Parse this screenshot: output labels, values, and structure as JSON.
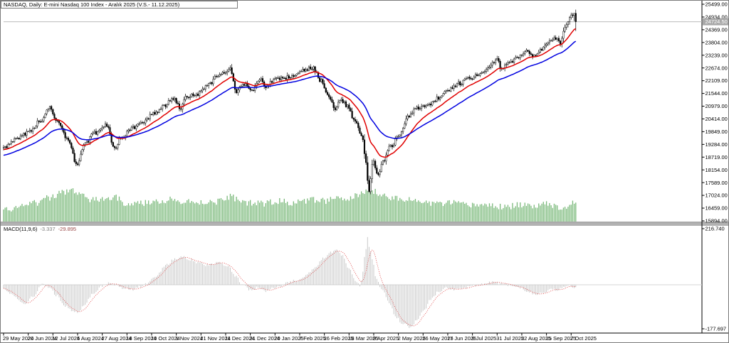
{
  "window": {
    "title": "NASDAQ, Daily:  E-mini Nasdaq 100 Index - Aralık 2025 (V.S.- 11.12.2025)"
  },
  "price_axis": {
    "ticks": [
      "25499.00",
      "24934.00",
      "24369.00",
      "23804.00",
      "23239.00",
      "22674.00",
      "22109.00",
      "21544.00",
      "20979.00",
      "20414.00",
      "19849.00",
      "19284.00",
      "18719.00",
      "18154.00",
      "17589.00",
      "17024.00",
      "16459.00",
      "15894.00"
    ],
    "current_label": "24724.50"
  },
  "time_axis": {
    "labels": [
      "29 May 2024",
      "20 Jun 2024",
      "12 Jul 2024",
      "5 Aug 2024",
      "27 Aug 2024",
      "18 Sep 2024",
      "10 Oct 2024",
      "1 Nov 2024",
      "21 Nov 2024",
      "11 Dec 2024",
      "31 Dec 2024",
      "20 Jan 2025",
      "7 Feb 2025",
      "26 Feb 2025",
      "18 Mar 2025",
      "9 Apr 2025",
      "2 May 2025",
      "26 May 2025",
      "17 Jun 2025",
      "9 Jul 2025",
      "31 Jul 2025",
      "22 Aug 2025",
      "15 Sep 2025",
      "7 Oct 2025"
    ]
  },
  "indicator_panel": {
    "name_label": "MACD(11,9,6)",
    "macd_value": "-3.337",
    "signal_value": "-29.895",
    "axis_max_label": "216.740",
    "axis_min_label": "-177.697"
  },
  "colors": {
    "candle": "#000000",
    "candle_up_fill": "#ffffff",
    "ma_fast": "#e00000",
    "ma_slow": "#0000e0",
    "volume": "#7ab97a",
    "macd_histogram": "#c9c9c9",
    "macd_signal": "#e05050",
    "macd_zero_line": "#d4d4d4",
    "current_price_line": "#bcbcbc",
    "current_price_tag_bg": "#a8a8a8",
    "current_price_tag_text": "#ffffff",
    "separator": "#b2b2b2",
    "axis_line": "#000000"
  },
  "chart_data": {
    "type": "candlestick",
    "symbol": "E-mini Nasdaq 100 Index - Aralık 2025",
    "timeframe": "Daily",
    "bars": 372,
    "price_axis_top": 25499,
    "price_axis_step": 565,
    "price_axis_bottom": 15894,
    "current_price": 24724.5,
    "macd_axis_max": 216.74,
    "macd_axis_min": -177.697,
    "macd_current": -3.337,
    "macd_signal_current": -29.895,
    "macd_settings": "11,9,6",
    "seed": 987431,
    "last_candle": {
      "open": 25100,
      "high": 25260,
      "low": 24310,
      "close": 24724.5
    },
    "overlays": [
      {
        "name": "fast-ma",
        "type": "ema",
        "period": 18,
        "color_key": "ma_fast"
      },
      {
        "name": "slow-ma",
        "type": "ema",
        "period": 42,
        "color_key": "ma_slow"
      }
    ],
    "close_anchors": [
      [
        4,
        19150
      ],
      [
        20,
        19500
      ],
      [
        38,
        19800
      ],
      [
        55,
        20300
      ],
      [
        68,
        20900
      ],
      [
        80,
        20300
      ],
      [
        95,
        19500
      ],
      [
        107,
        18400
      ],
      [
        118,
        19300
      ],
      [
        132,
        19800
      ],
      [
        150,
        20150
      ],
      [
        159,
        19100
      ],
      [
        170,
        19600
      ],
      [
        185,
        20000
      ],
      [
        200,
        20300
      ],
      [
        215,
        20650
      ],
      [
        230,
        21000
      ],
      [
        242,
        21350
      ],
      [
        252,
        20900
      ],
      [
        262,
        21420
      ],
      [
        275,
        21500
      ],
      [
        290,
        21900
      ],
      [
        305,
        22300
      ],
      [
        322,
        22620
      ],
      [
        331,
        21650
      ],
      [
        342,
        21950
      ],
      [
        352,
        21670
      ],
      [
        365,
        22200
      ],
      [
        372,
        21830
      ],
      [
        385,
        22150
      ],
      [
        400,
        22250
      ],
      [
        412,
        22350
      ],
      [
        425,
        22550
      ],
      [
        438,
        22700
      ],
      [
        450,
        22100
      ],
      [
        462,
        21300
      ],
      [
        470,
        20880
      ],
      [
        478,
        21260
      ],
      [
        488,
        20950
      ],
      [
        497,
        20300
      ],
      [
        507,
        19700
      ],
      [
        513,
        18500
      ],
      [
        517,
        17240
      ],
      [
        523,
        18590
      ],
      [
        530,
        17870
      ],
      [
        538,
        18600
      ],
      [
        548,
        19200
      ],
      [
        560,
        19700
      ],
      [
        571,
        20480
      ],
      [
        585,
        20880
      ],
      [
        600,
        21050
      ],
      [
        615,
        21350
      ],
      [
        630,
        21700
      ],
      [
        645,
        22000
      ],
      [
        660,
        22250
      ],
      [
        675,
        22450
      ],
      [
        688,
        22800
      ],
      [
        697,
        23100
      ],
      [
        703,
        22650
      ],
      [
        715,
        22950
      ],
      [
        728,
        23150
      ],
      [
        740,
        23400
      ],
      [
        748,
        23150
      ],
      [
        758,
        23500
      ],
      [
        768,
        23800
      ],
      [
        778,
        24000
      ],
      [
        786,
        23820
      ],
      [
        794,
        24500
      ],
      [
        802,
        25120
      ],
      [
        808,
        24724.5
      ]
    ],
    "volume_anchors": [
      [
        4,
        16
      ],
      [
        25,
        20
      ],
      [
        50,
        26
      ],
      [
        70,
        34
      ],
      [
        88,
        42
      ],
      [
        100,
        45
      ],
      [
        112,
        38
      ],
      [
        128,
        30
      ],
      [
        145,
        32
      ],
      [
        160,
        34
      ],
      [
        175,
        26
      ],
      [
        192,
        25
      ],
      [
        210,
        27
      ],
      [
        228,
        30
      ],
      [
        242,
        32
      ],
      [
        255,
        26
      ],
      [
        270,
        29
      ],
      [
        285,
        27
      ],
      [
        300,
        28
      ],
      [
        315,
        30
      ],
      [
        322,
        36
      ],
      [
        335,
        30
      ],
      [
        350,
        26
      ],
      [
        365,
        25
      ],
      [
        380,
        27
      ],
      [
        395,
        29
      ],
      [
        410,
        26
      ],
      [
        425,
        28
      ],
      [
        440,
        31
      ],
      [
        455,
        29
      ],
      [
        470,
        32
      ],
      [
        485,
        31
      ],
      [
        500,
        36
      ],
      [
        510,
        42
      ],
      [
        517,
        46
      ],
      [
        525,
        43
      ],
      [
        535,
        38
      ],
      [
        548,
        34
      ],
      [
        560,
        32
      ],
      [
        575,
        30
      ],
      [
        590,
        28
      ],
      [
        605,
        26
      ],
      [
        620,
        25
      ],
      [
        635,
        26
      ],
      [
        650,
        24
      ],
      [
        665,
        23
      ],
      [
        680,
        24
      ],
      [
        695,
        22
      ],
      [
        710,
        20
      ],
      [
        725,
        23
      ],
      [
        740,
        22
      ],
      [
        755,
        24
      ],
      [
        770,
        26
      ],
      [
        782,
        20
      ],
      [
        794,
        22
      ],
      [
        808,
        28
      ]
    ],
    "macd_anchors": [
      [
        4,
        -15
      ],
      [
        12,
        -30
      ],
      [
        22,
        -50
      ],
      [
        32,
        -75
      ],
      [
        45,
        -45
      ],
      [
        58,
        0
      ],
      [
        68,
        -10
      ],
      [
        78,
        -40
      ],
      [
        90,
        -80
      ],
      [
        100,
        -100
      ],
      [
        108,
        -108
      ],
      [
        118,
        -75
      ],
      [
        130,
        -35
      ],
      [
        142,
        -5
      ],
      [
        152,
        8
      ],
      [
        162,
        -2
      ],
      [
        172,
        -12
      ],
      [
        185,
        -18
      ],
      [
        196,
        -8
      ],
      [
        205,
        2
      ],
      [
        218,
        35
      ],
      [
        232,
        75
      ],
      [
        245,
        100
      ],
      [
        255,
        108
      ],
      [
        265,
        98
      ],
      [
        278,
        85
      ],
      [
        292,
        75
      ],
      [
        305,
        85
      ],
      [
        318,
        75
      ],
      [
        330,
        35
      ],
      [
        340,
        -2
      ],
      [
        352,
        -22
      ],
      [
        362,
        -8
      ],
      [
        372,
        -28
      ],
      [
        382,
        -12
      ],
      [
        392,
        -5
      ],
      [
        402,
        6
      ],
      [
        415,
        18
      ],
      [
        428,
        35
      ],
      [
        440,
        62
      ],
      [
        452,
        100
      ],
      [
        465,
        125
      ],
      [
        473,
        132
      ],
      [
        480,
        115
      ],
      [
        490,
        60
      ],
      [
        498,
        15
      ],
      [
        505,
        -5
      ],
      [
        508,
        40
      ],
      [
        512,
        120
      ],
      [
        515,
        183
      ],
      [
        518,
        145
      ],
      [
        522,
        95
      ],
      [
        528,
        20
      ],
      [
        535,
        -14
      ],
      [
        545,
        -68
      ],
      [
        555,
        -123
      ],
      [
        565,
        -150
      ],
      [
        575,
        -163
      ],
      [
        585,
        -135
      ],
      [
        595,
        -95
      ],
      [
        605,
        -55
      ],
      [
        615,
        -28
      ],
      [
        625,
        -14
      ],
      [
        638,
        -20
      ],
      [
        652,
        -12
      ],
      [
        665,
        -2
      ],
      [
        678,
        4
      ],
      [
        692,
        10
      ],
      [
        705,
        4
      ],
      [
        718,
        -4
      ],
      [
        730,
        -12
      ],
      [
        742,
        -28
      ],
      [
        752,
        -40
      ],
      [
        762,
        -32
      ],
      [
        772,
        -15
      ],
      [
        782,
        -22
      ],
      [
        792,
        -8
      ],
      [
        800,
        -6
      ],
      [
        808,
        -10
      ]
    ]
  }
}
